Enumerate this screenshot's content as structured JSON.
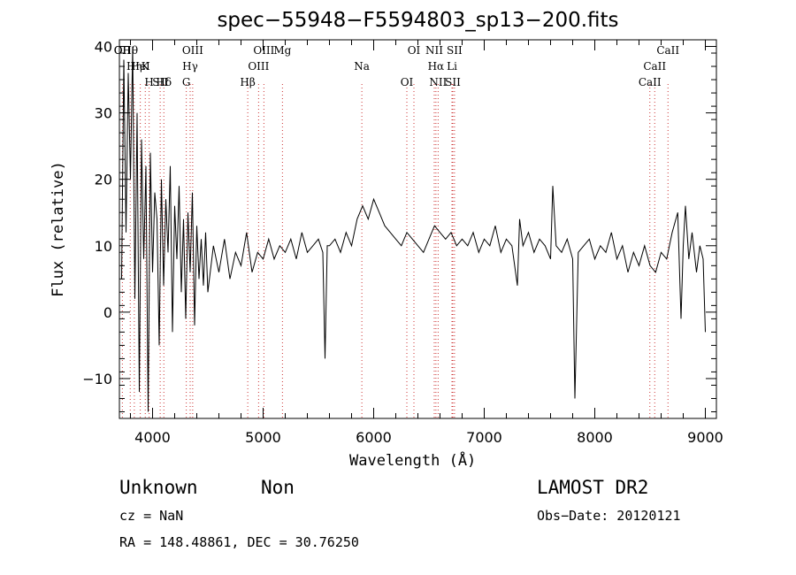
{
  "chart_data": {
    "type": "line",
    "title": "spec−55948−F5594803_sp13−200.fits",
    "xlabel": "Wavelength (Å)",
    "ylabel": "Flux (relative)",
    "xlim": [
      3700,
      9100
    ],
    "ylim": [
      -16,
      41
    ],
    "xticks": [
      4000,
      5000,
      6000,
      7000,
      8000,
      9000
    ],
    "yticks": [
      -10,
      0,
      10,
      20,
      30,
      40
    ],
    "ytick_labels": [
      "−10",
      "0",
      "10",
      "20",
      "30",
      "40"
    ],
    "grid": false,
    "series": [
      {
        "x": [
          3720,
          3740,
          3760,
          3780,
          3800,
          3820,
          3840,
          3860,
          3880,
          3900,
          3920,
          3940,
          3960,
          3980,
          4000,
          4020,
          4040,
          4060,
          4080,
          4100,
          4120,
          4140,
          4160,
          4180,
          4200,
          4220,
          4240,
          4260,
          4280,
          4300,
          4320,
          4340,
          4360,
          4380,
          4400,
          4420,
          4440,
          4460,
          4480,
          4500,
          4550,
          4600,
          4650,
          4700,
          4750,
          4800,
          4850,
          4900,
          4950,
          5000,
          5050,
          5100,
          5150,
          5200,
          5250,
          5300,
          5350,
          5400,
          5450,
          5500,
          5540,
          5560,
          5580,
          5600,
          5650,
          5700,
          5750,
          5800,
          5850,
          5900,
          5950,
          6000,
          6050,
          6100,
          6150,
          6200,
          6250,
          6300,
          6350,
          6400,
          6450,
          6500,
          6550,
          6600,
          6650,
          6700,
          6750,
          6800,
          6850,
          6900,
          6950,
          7000,
          7050,
          7100,
          7150,
          7200,
          7250,
          7300,
          7320,
          7350,
          7400,
          7450,
          7500,
          7550,
          7600,
          7620,
          7650,
          7700,
          7750,
          7800,
          7820,
          7850,
          7900,
          7950,
          8000,
          8050,
          8100,
          8150,
          8200,
          8250,
          8300,
          8350,
          8400,
          8450,
          8500,
          8550,
          8600,
          8650,
          8700,
          8750,
          8780,
          8800,
          8820,
          8850,
          8880,
          8900,
          8920,
          8950,
          8980,
          9000
        ],
        "values": [
          5,
          38,
          12,
          36,
          20,
          40,
          2,
          30,
          -12,
          26,
          8,
          22,
          -15,
          24,
          6,
          18,
          14,
          -5,
          20,
          4,
          17,
          9,
          22,
          -3,
          16,
          8,
          19,
          3,
          14,
          -1,
          15,
          6,
          18,
          -2,
          13,
          5,
          11,
          4,
          12,
          3,
          10,
          6,
          11,
          5,
          9,
          7,
          12,
          6,
          9,
          8,
          11,
          8,
          10,
          9,
          11,
          8,
          12,
          9,
          10,
          11,
          9,
          -7,
          10,
          10,
          11,
          9,
          12,
          10,
          14,
          16,
          14,
          17,
          15,
          13,
          12,
          11,
          10,
          12,
          11,
          10,
          9,
          11,
          13,
          12,
          11,
          12,
          10,
          11,
          10,
          12,
          9,
          11,
          10,
          13,
          9,
          11,
          10,
          4,
          14,
          10,
          12,
          9,
          11,
          10,
          8,
          19,
          10,
          9,
          11,
          8,
          -13,
          9,
          10,
          11,
          8,
          10,
          9,
          12,
          8,
          10,
          6,
          9,
          7,
          10,
          7,
          6,
          9,
          8,
          12,
          15,
          -1,
          10,
          16,
          8,
          12,
          9,
          6,
          10,
          8,
          -3
        ]
      }
    ],
    "annotations": [
      {
        "text": "Hθ",
        "x": 3798
      },
      {
        "text": "K",
        "x": 3934
      },
      {
        "text": "Hδ",
        "x": 4102
      },
      {
        "text": "OII",
        "x": 3727
      },
      {
        "text": "HeI",
        "x": 3889
      },
      {
        "text": "SII",
        "x": 4069
      },
      {
        "text": "OII",
        "x": 3727
      },
      {
        "text": "Hη",
        "x": 3835
      },
      {
        "text": "H",
        "x": 3969
      },
      {
        "text": "OIII",
        "x": 4363
      },
      {
        "text": "Hγ",
        "x": 4340
      },
      {
        "text": "G",
        "x": 4305
      },
      {
        "text": "OIII",
        "x": 5007
      },
      {
        "text": "OIII",
        "x": 4959
      },
      {
        "text": "Hβ",
        "x": 4861
      },
      {
        "text": "Mg",
        "x": 5175
      },
      {
        "text": "Na",
        "x": 5893
      },
      {
        "text": "OI",
        "x": 6300
      },
      {
        "text": "OI",
        "x": 6364
      },
      {
        "text": "Hα",
        "x": 6563
      },
      {
        "text": "SII",
        "x": 6716
      },
      {
        "text": "NII",
        "x": 6548
      },
      {
        "text": "Li",
        "x": 6708
      },
      {
        "text": "NII",
        "x": 6583
      },
      {
        "text": "SII",
        "x": 6731
      },
      {
        "text": "CaII",
        "x": 8542
      },
      {
        "text": "CaII",
        "x": 8498
      },
      {
        "text": "CaII",
        "x": 8662
      }
    ]
  },
  "footer": {
    "class_label": "Unknown",
    "subclass_label": "Non",
    "survey": "LAMOST DR2",
    "cz": "cz = NaN",
    "obs_date": "Obs−Date: 20120121",
    "coords": "RA = 148.48861, DEC =  30.76250"
  },
  "colors": {
    "axis": "#000000",
    "spectrum": "#000000",
    "line_marker": "#cc3333"
  }
}
